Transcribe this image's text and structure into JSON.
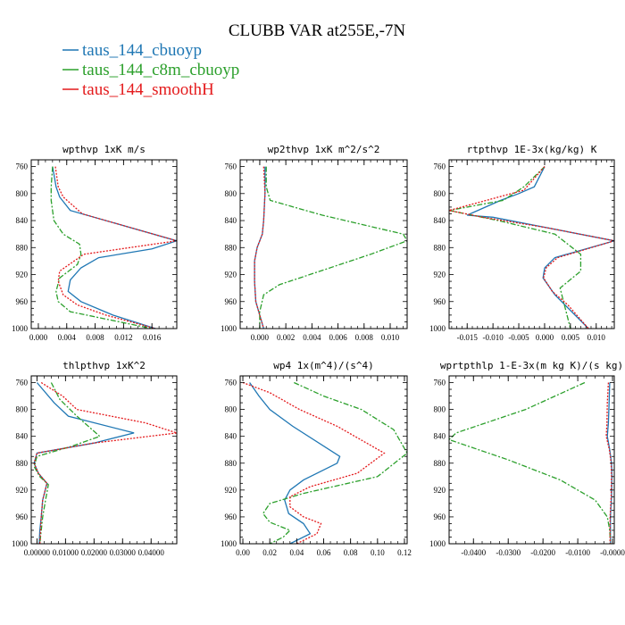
{
  "figure_title": "CLUBB VAR at255E,-7N",
  "legend": [
    {
      "label": "taus_144_cbuoyp",
      "color": "#1f77b4",
      "dash": "solid"
    },
    {
      "label": "taus_144_c8m_cbuoyp",
      "color": "#2ca02c",
      "dash": "dashdot"
    },
    {
      "label": "taus_144_smoothH",
      "color": "#e41a1c",
      "dash": "dotted"
    }
  ],
  "chart_data": [
    {
      "type": "line",
      "title": "wpthvp  1xK m/s",
      "ylim": [
        1000,
        750
      ],
      "y_ticks": [
        760,
        800,
        840,
        880,
        920,
        960,
        1000
      ],
      "y_tick_labels": [
        "760",
        "800",
        "840",
        "880",
        "920",
        "960",
        "1000"
      ],
      "xlim": [
        -0.001,
        0.0195
      ],
      "x_ticks": [
        0.0,
        0.004,
        0.008,
        0.012,
        0.016
      ],
      "x_tick_labels": [
        "0.000",
        "0.004",
        "0.008",
        "0.012",
        "0.016"
      ],
      "x_minor_step": 0.001,
      "series": [
        {
          "name": "taus_144_cbuoyp",
          "x": [
            0.002,
            0.0025,
            0.003,
            0.0045,
            0.0195,
            0.016,
            0.0085,
            0.006,
            0.0045,
            0.0042,
            0.006,
            0.0105,
            0.0165
          ],
          "y": [
            760,
            790,
            805,
            825,
            870,
            882,
            895,
            910,
            928,
            945,
            960,
            980,
            1000
          ]
        },
        {
          "name": "taus_144_c8m_cbuoyp",
          "x": [
            0.002,
            0.0018,
            0.0018,
            0.0022,
            0.0035,
            0.0058,
            0.006,
            0.0055,
            0.003,
            0.0025,
            0.0028,
            0.0045,
            0.016
          ],
          "y": [
            760,
            790,
            810,
            840,
            860,
            875,
            890,
            905,
            925,
            945,
            960,
            975,
            1000
          ]
        },
        {
          "name": "taus_144_smoothH",
          "x": [
            0.0024,
            0.0028,
            0.0035,
            0.0062,
            0.0195,
            0.0064,
            0.003,
            0.0028,
            0.0035,
            0.0055,
            0.0095,
            0.0165
          ],
          "y": [
            760,
            790,
            805,
            830,
            870,
            890,
            915,
            930,
            950,
            965,
            980,
            1000
          ]
        }
      ]
    },
    {
      "type": "line",
      "title": "wp2thvp  1xK m^2/s^2",
      "ylim": [
        1000,
        750
      ],
      "y_ticks": [
        760,
        800,
        840,
        880,
        920,
        960,
        1000
      ],
      "y_tick_labels": [
        "760",
        "800",
        "840",
        "880",
        "920",
        "960",
        "1000"
      ],
      "xlim": [
        -0.0015,
        0.0113
      ],
      "x_ticks": [
        0.0,
        0.002,
        0.004,
        0.006,
        0.008,
        0.01
      ],
      "x_tick_labels": [
        "0.000",
        "0.002",
        "0.004",
        "0.006",
        "0.008",
        "0.010"
      ],
      "x_minor_step": 0.0005,
      "series": [
        {
          "name": "taus_144_cbuoyp",
          "x": [
            0.0004,
            0.0004,
            0.0003,
            0.0002,
            -0.0002,
            -0.0004,
            -0.0004,
            -0.0003,
            0.0,
            0.0003
          ],
          "y": [
            760,
            800,
            840,
            860,
            880,
            900,
            930,
            960,
            980,
            1000
          ]
        },
        {
          "name": "taus_144_c8m_cbuoyp",
          "x": [
            0.0005,
            0.0005,
            0.0008,
            0.0048,
            0.011,
            0.0113,
            0.0085,
            0.0015,
            0.0003,
            0.0,
            0.0
          ],
          "y": [
            760,
            790,
            810,
            832,
            860,
            870,
            890,
            935,
            950,
            975,
            1000
          ]
        },
        {
          "name": "taus_144_smoothH",
          "x": [
            0.0003,
            0.0004,
            0.0003,
            0.0002,
            -0.0002,
            -0.0004,
            -0.0004,
            -0.0003,
            0.0,
            0.0003
          ],
          "y": [
            760,
            800,
            840,
            860,
            880,
            900,
            930,
            960,
            980,
            1000
          ]
        }
      ]
    },
    {
      "type": "line",
      "title": "rtpthvp  1E-3x(kg/kg) K",
      "ylim": [
        1000,
        750
      ],
      "y_ticks": [
        760,
        800,
        840,
        880,
        920,
        960,
        1000
      ],
      "y_tick_labels": [
        "760",
        "800",
        "840",
        "880",
        "920",
        "960",
        "1000"
      ],
      "xlim": [
        -0.0185,
        0.0135
      ],
      "x_ticks": [
        -0.015,
        -0.01,
        -0.005,
        0.0,
        0.005,
        0.01
      ],
      "x_tick_labels": [
        "-0.015",
        "-0.010",
        "-0.005",
        "0.000",
        "0.005",
        "0.010"
      ],
      "x_minor_step": 0.001,
      "series": [
        {
          "name": "taus_144_cbuoyp",
          "x": [
            0.0,
            -0.002,
            -0.005,
            -0.0085,
            -0.015,
            -0.01,
            0.0135,
            0.002,
            0.0,
            -0.0003,
            0.002,
            0.0085
          ],
          "y": [
            760,
            790,
            800,
            810,
            832,
            835,
            870,
            895,
            910,
            925,
            950,
            1000
          ]
        },
        {
          "name": "taus_144_c8m_cbuoyp",
          "x": [
            0.0,
            -0.004,
            -0.008,
            -0.0185,
            -0.009,
            0.002,
            0.007,
            0.007,
            0.003,
            0.0035,
            0.005
          ],
          "y": [
            760,
            790,
            810,
            825,
            840,
            860,
            890,
            915,
            940,
            955,
            1000
          ]
        },
        {
          "name": "taus_144_smoothH",
          "x": [
            0.0,
            -0.004,
            -0.0185,
            -0.012,
            0.0,
            0.0135,
            0.0025,
            0.0003,
            -0.0002,
            0.0015,
            0.0045,
            0.0085
          ],
          "y": [
            760,
            795,
            825,
            835,
            850,
            870,
            895,
            910,
            925,
            945,
            965,
            1000
          ]
        }
      ]
    },
    {
      "type": "line",
      "title": "thlpthvp  1xK^2",
      "ylim": [
        1000,
        750
      ],
      "y_ticks": [
        760,
        800,
        840,
        880,
        920,
        960,
        1000
      ],
      "y_tick_labels": [
        "760",
        "800",
        "840",
        "880",
        "920",
        "960",
        "1000"
      ],
      "xlim": [
        -0.002,
        0.049
      ],
      "x_ticks": [
        0.0,
        0.01,
        0.02,
        0.03,
        0.04
      ],
      "x_tick_labels": [
        "0.00000",
        "0.01000",
        "0.02000",
        "0.03000",
        "0.04000"
      ],
      "x_minor_step": 0.0025,
      "series": [
        {
          "name": "taus_144_cbuoyp",
          "x": [
            0.0,
            0.006,
            0.011,
            0.034,
            0.02,
            0.0,
            -0.001,
            0.0005,
            0.0035,
            0.002,
            0.0015,
            0.001,
            0.0008
          ],
          "y": [
            760,
            790,
            810,
            835,
            850,
            865,
            880,
            895,
            910,
            935,
            960,
            980,
            1000
          ]
        },
        {
          "name": "taus_144_c8m_cbuoyp",
          "x": [
            0.005,
            0.008,
            0.014,
            0.022,
            0.012,
            0.0,
            -0.001,
            0.001,
            0.004,
            0.003,
            0.002,
            0.0015,
            0.001
          ],
          "y": [
            760,
            785,
            810,
            840,
            855,
            870,
            885,
            900,
            912,
            935,
            960,
            980,
            1000
          ]
        },
        {
          "name": "taus_144_smoothH",
          "x": [
            0.0015,
            0.009,
            0.014,
            0.038,
            0.049,
            0.02,
            0.0,
            -0.001,
            0.0005,
            0.0035,
            0.002,
            0.0015,
            0.001
          ],
          "y": [
            760,
            780,
            800,
            820,
            835,
            850,
            865,
            880,
            895,
            910,
            935,
            960,
            1000
          ]
        }
      ]
    },
    {
      "type": "line",
      "title": "wp4  1x(m^4)/(s^4)",
      "ylim": [
        1000,
        750
      ],
      "y_ticks": [
        760,
        800,
        840,
        880,
        920,
        960,
        1000
      ],
      "y_tick_labels": [
        "760",
        "800",
        "840",
        "880",
        "920",
        "960",
        "1000"
      ],
      "xlim": [
        -0.002,
        0.122
      ],
      "x_ticks": [
        0.0,
        0.02,
        0.04,
        0.06,
        0.08,
        0.1,
        0.12
      ],
      "x_tick_labels": [
        "0.00",
        "0.02",
        "0.04",
        "0.06",
        "0.08",
        "0.10",
        "0.12"
      ],
      "x_minor_step": 0.005,
      "series": [
        {
          "name": "taus_144_cbuoyp",
          "x": [
            0.005,
            0.012,
            0.02,
            0.037,
            0.072,
            0.07,
            0.045,
            0.035,
            0.031,
            0.034,
            0.045,
            0.05,
            0.035
          ],
          "y": [
            760,
            780,
            800,
            825,
            870,
            880,
            905,
            920,
            935,
            955,
            970,
            985,
            1000
          ]
        },
        {
          "name": "taus_144_c8m_cbuoyp",
          "x": [
            0.038,
            0.06,
            0.088,
            0.112,
            0.122,
            0.1,
            0.045,
            0.02,
            0.015,
            0.02,
            0.035,
            0.03,
            0.02
          ],
          "y": [
            760,
            780,
            800,
            830,
            865,
            900,
            925,
            940,
            955,
            968,
            980,
            990,
            1000
          ]
        },
        {
          "name": "taus_144_smoothH",
          "x": [
            0.0,
            0.02,
            0.042,
            0.07,
            0.105,
            0.085,
            0.05,
            0.035,
            0.035,
            0.045,
            0.058,
            0.055,
            0.04
          ],
          "y": [
            760,
            775,
            800,
            825,
            865,
            895,
            915,
            930,
            945,
            960,
            970,
            985,
            1000
          ]
        }
      ]
    },
    {
      "type": "line",
      "title": "wprtpthlp  1-E-3x(m kg K)/(s kg)",
      "ylim": [
        1000,
        750
      ],
      "y_ticks": [
        760,
        800,
        840,
        880,
        920,
        960,
        1000
      ],
      "y_tick_labels": [
        "760",
        "800",
        "840",
        "880",
        "920",
        "960",
        "1000"
      ],
      "xlim": [
        -0.047,
        0.0005
      ],
      "x_ticks": [
        -0.04,
        -0.03,
        -0.02,
        -0.01,
        0.0
      ],
      "x_tick_labels": [
        "-0.0400",
        "-0.0300",
        "-0.0200",
        "-0.0100",
        "-0.0000"
      ],
      "x_minor_step": 0.0025,
      "series": [
        {
          "name": "taus_144_cbuoyp",
          "x": [
            -0.0008,
            -0.001,
            -0.0012,
            -0.0015,
            -0.0008,
            -0.0003,
            -0.0002,
            -0.0003,
            -0.0006,
            -0.0006
          ],
          "y": [
            760,
            790,
            820,
            840,
            860,
            880,
            900,
            930,
            960,
            1000
          ]
        },
        {
          "name": "taus_144_c8m_cbuoyp",
          "x": [
            -0.008,
            -0.025,
            -0.045,
            -0.047,
            -0.03,
            -0.015,
            -0.005,
            -0.0015,
            -0.0008,
            -0.0006
          ],
          "y": [
            760,
            800,
            835,
            845,
            875,
            905,
            935,
            960,
            980,
            1000
          ]
        },
        {
          "name": "taus_144_smoothH",
          "x": [
            -0.0012,
            -0.0015,
            -0.0016,
            -0.0018,
            -0.0009,
            -0.0004,
            -0.0003,
            -0.0004,
            -0.0007,
            -0.0007
          ],
          "y": [
            760,
            790,
            820,
            840,
            860,
            880,
            900,
            930,
            960,
            1000
          ]
        }
      ]
    }
  ]
}
